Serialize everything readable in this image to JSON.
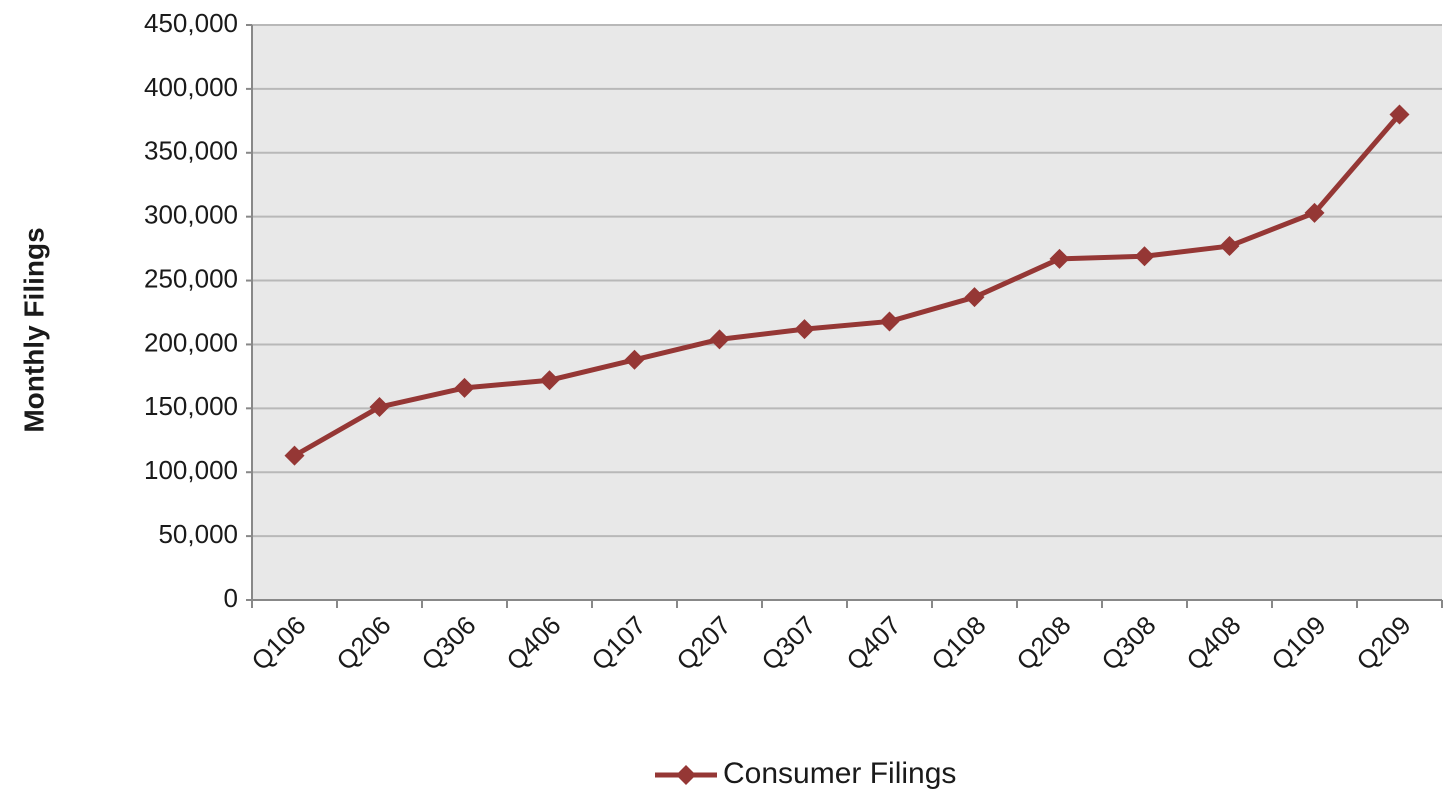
{
  "chart_data": {
    "type": "line",
    "y_label": "Monthly Filings",
    "categories": [
      "Q106",
      "Q206",
      "Q306",
      "Q406",
      "Q107",
      "Q207",
      "Q307",
      "Q407",
      "Q108",
      "Q208",
      "Q308",
      "Q408",
      "Q109",
      "Q209"
    ],
    "series": [
      {
        "name": "Consumer Filings",
        "color": "#953735",
        "values": [
          113000,
          151000,
          166000,
          172000,
          188000,
          204000,
          212000,
          218000,
          237000,
          267000,
          269000,
          277000,
          303000,
          380000
        ]
      }
    ],
    "ylim": [
      0,
      450000
    ],
    "yticks": [
      0,
      {
        "value": 50000,
        "label": "50,000"
      },
      {
        "value": 100000,
        "label": "100,000"
      },
      {
        "value": 150000,
        "label": "150,000"
      },
      {
        "value": 200000,
        "label": "200,000"
      },
      {
        "value": 250000,
        "label": "250,000"
      },
      {
        "value": 300000,
        "label": "300,000"
      },
      {
        "value": 350000,
        "label": "350,000"
      },
      {
        "value": 400000,
        "label": "400,000"
      },
      {
        "value": 450000,
        "label": "450,000"
      }
    ],
    "grid": true,
    "legend": "bottom"
  }
}
